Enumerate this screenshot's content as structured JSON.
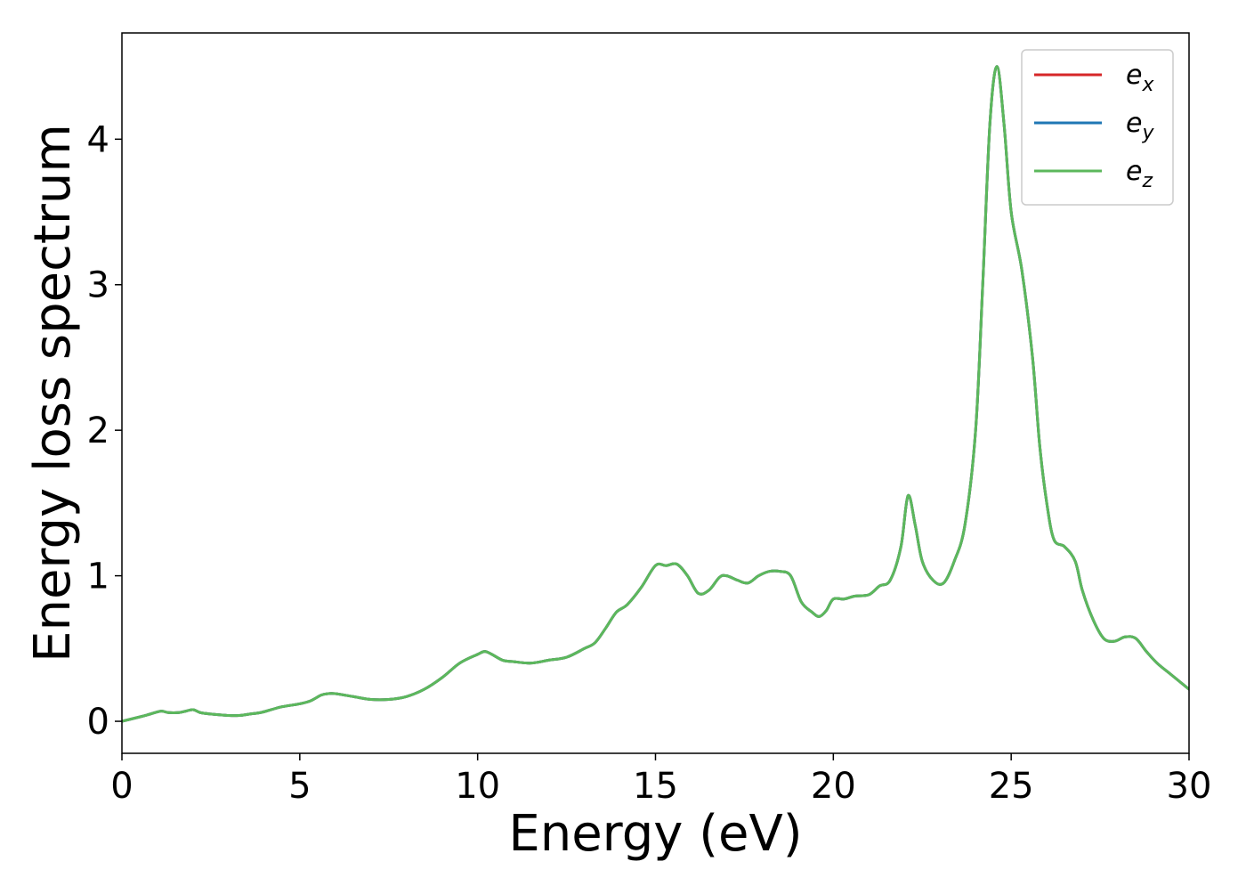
{
  "chart_data": {
    "type": "line",
    "title": "",
    "xlabel": "Energy (eV)",
    "ylabel": "Energy loss spectrum",
    "xlim": [
      0,
      30
    ],
    "ylim": [
      -0.22,
      4.73
    ],
    "xticks": [
      "0",
      "5",
      "10",
      "15",
      "20",
      "25",
      "30"
    ],
    "yticks": [
      "0",
      "1",
      "2",
      "3",
      "4"
    ],
    "xtick_values": [
      0,
      5,
      10,
      15,
      20,
      25,
      30
    ],
    "ytick_values": [
      0,
      1,
      2,
      3,
      4
    ],
    "grid": false,
    "legend": {
      "position": "top-right"
    },
    "series": [
      {
        "name": "e_x",
        "label_main": "e",
        "label_sub": "x",
        "color": "#d62728",
        "x": [
          0,
          0.5,
          0.8,
          1.1,
          1.3,
          1.6,
          1.8,
          2.0,
          2.2,
          2.5,
          3.0,
          3.3,
          3.6,
          3.9,
          4.2,
          4.5,
          5.0,
          5.3,
          5.6,
          5.8,
          6.0,
          6.5,
          7.0,
          7.5,
          8.0,
          8.5,
          9.0,
          9.5,
          10.0,
          10.2,
          10.4,
          10.7,
          11.0,
          11.5,
          12.0,
          12.5,
          13.0,
          13.3,
          13.6,
          13.9,
          14.2,
          14.6,
          15.0,
          15.3,
          15.6,
          15.9,
          16.2,
          16.5,
          16.8,
          17.0,
          17.3,
          17.6,
          17.9,
          18.2,
          18.5,
          18.8,
          19.1,
          19.4,
          19.6,
          19.8,
          20.0,
          20.3,
          20.6,
          21.0,
          21.3,
          21.6,
          21.9,
          22.1,
          22.3,
          22.5,
          22.8,
          23.1,
          23.4,
          23.7,
          24.0,
          24.2,
          24.4,
          24.6,
          24.8,
          25.0,
          25.3,
          25.6,
          25.8,
          26.0,
          26.2,
          26.5,
          26.8,
          27.0,
          27.3,
          27.6,
          27.9,
          28.2,
          28.5,
          28.8,
          29.1,
          29.5,
          30.0
        ],
        "y": [
          0.0,
          0.03,
          0.05,
          0.07,
          0.06,
          0.06,
          0.07,
          0.08,
          0.06,
          0.05,
          0.04,
          0.04,
          0.05,
          0.06,
          0.08,
          0.1,
          0.12,
          0.14,
          0.18,
          0.19,
          0.19,
          0.17,
          0.15,
          0.15,
          0.17,
          0.22,
          0.3,
          0.4,
          0.46,
          0.48,
          0.46,
          0.42,
          0.41,
          0.4,
          0.42,
          0.44,
          0.5,
          0.54,
          0.64,
          0.75,
          0.8,
          0.92,
          1.07,
          1.07,
          1.08,
          1.0,
          0.88,
          0.9,
          0.99,
          1.0,
          0.97,
          0.95,
          1.0,
          1.03,
          1.03,
          1.0,
          0.82,
          0.75,
          0.72,
          0.76,
          0.84,
          0.84,
          0.86,
          0.87,
          0.93,
          0.97,
          1.2,
          1.55,
          1.35,
          1.1,
          0.97,
          0.95,
          1.1,
          1.35,
          2.0,
          3.0,
          4.1,
          4.5,
          4.1,
          3.5,
          3.1,
          2.5,
          1.9,
          1.5,
          1.25,
          1.2,
          1.1,
          0.9,
          0.7,
          0.57,
          0.55,
          0.58,
          0.57,
          0.48,
          0.4,
          0.32,
          0.22
        ]
      },
      {
        "name": "e_y",
        "label_main": "e",
        "label_sub": "y",
        "color": "#1f77b4",
        "x": [
          0,
          0.5,
          0.8,
          1.1,
          1.3,
          1.6,
          1.8,
          2.0,
          2.2,
          2.5,
          3.0,
          3.3,
          3.6,
          3.9,
          4.2,
          4.5,
          5.0,
          5.3,
          5.6,
          5.8,
          6.0,
          6.5,
          7.0,
          7.5,
          8.0,
          8.5,
          9.0,
          9.5,
          10.0,
          10.2,
          10.4,
          10.7,
          11.0,
          11.5,
          12.0,
          12.5,
          13.0,
          13.3,
          13.6,
          13.9,
          14.2,
          14.6,
          15.0,
          15.3,
          15.6,
          15.9,
          16.2,
          16.5,
          16.8,
          17.0,
          17.3,
          17.6,
          17.9,
          18.2,
          18.5,
          18.8,
          19.1,
          19.4,
          19.6,
          19.8,
          20.0,
          20.3,
          20.6,
          21.0,
          21.3,
          21.6,
          21.9,
          22.1,
          22.3,
          22.5,
          22.8,
          23.1,
          23.4,
          23.7,
          24.0,
          24.2,
          24.4,
          24.6,
          24.8,
          25.0,
          25.3,
          25.6,
          25.8,
          26.0,
          26.2,
          26.5,
          26.8,
          27.0,
          27.3,
          27.6,
          27.9,
          28.2,
          28.5,
          28.8,
          29.1,
          29.5,
          30.0
        ],
        "y": [
          0.0,
          0.03,
          0.05,
          0.07,
          0.06,
          0.06,
          0.07,
          0.08,
          0.06,
          0.05,
          0.04,
          0.04,
          0.05,
          0.06,
          0.08,
          0.1,
          0.12,
          0.14,
          0.18,
          0.19,
          0.19,
          0.17,
          0.15,
          0.15,
          0.17,
          0.22,
          0.3,
          0.4,
          0.46,
          0.48,
          0.46,
          0.42,
          0.41,
          0.4,
          0.42,
          0.44,
          0.5,
          0.54,
          0.64,
          0.75,
          0.8,
          0.92,
          1.07,
          1.07,
          1.08,
          1.0,
          0.88,
          0.9,
          0.99,
          1.0,
          0.97,
          0.95,
          1.0,
          1.03,
          1.03,
          1.0,
          0.82,
          0.75,
          0.72,
          0.76,
          0.84,
          0.84,
          0.86,
          0.87,
          0.93,
          0.97,
          1.2,
          1.55,
          1.35,
          1.1,
          0.97,
          0.95,
          1.1,
          1.35,
          2.0,
          3.0,
          4.1,
          4.5,
          4.1,
          3.5,
          3.1,
          2.5,
          1.9,
          1.5,
          1.25,
          1.2,
          1.1,
          0.9,
          0.7,
          0.57,
          0.55,
          0.58,
          0.57,
          0.48,
          0.4,
          0.32,
          0.22
        ]
      },
      {
        "name": "e_z",
        "label_main": "e",
        "label_sub": "z",
        "color": "#5cb85c",
        "x": [
          0,
          0.5,
          0.8,
          1.1,
          1.3,
          1.6,
          1.8,
          2.0,
          2.2,
          2.5,
          3.0,
          3.3,
          3.6,
          3.9,
          4.2,
          4.5,
          5.0,
          5.3,
          5.6,
          5.8,
          6.0,
          6.5,
          7.0,
          7.5,
          8.0,
          8.5,
          9.0,
          9.5,
          10.0,
          10.2,
          10.4,
          10.7,
          11.0,
          11.5,
          12.0,
          12.5,
          13.0,
          13.3,
          13.6,
          13.9,
          14.2,
          14.6,
          15.0,
          15.3,
          15.6,
          15.9,
          16.2,
          16.5,
          16.8,
          17.0,
          17.3,
          17.6,
          17.9,
          18.2,
          18.5,
          18.8,
          19.1,
          19.4,
          19.6,
          19.8,
          20.0,
          20.3,
          20.6,
          21.0,
          21.3,
          21.6,
          21.9,
          22.1,
          22.3,
          22.5,
          22.8,
          23.1,
          23.4,
          23.7,
          24.0,
          24.2,
          24.4,
          24.6,
          24.8,
          25.0,
          25.3,
          25.6,
          25.8,
          26.0,
          26.2,
          26.5,
          26.8,
          27.0,
          27.3,
          27.6,
          27.9,
          28.2,
          28.5,
          28.8,
          29.1,
          29.5,
          30.0
        ],
        "y": [
          0.0,
          0.03,
          0.05,
          0.07,
          0.06,
          0.06,
          0.07,
          0.08,
          0.06,
          0.05,
          0.04,
          0.04,
          0.05,
          0.06,
          0.08,
          0.1,
          0.12,
          0.14,
          0.18,
          0.19,
          0.19,
          0.17,
          0.15,
          0.15,
          0.17,
          0.22,
          0.3,
          0.4,
          0.46,
          0.48,
          0.46,
          0.42,
          0.41,
          0.4,
          0.42,
          0.44,
          0.5,
          0.54,
          0.64,
          0.75,
          0.8,
          0.92,
          1.07,
          1.07,
          1.08,
          1.0,
          0.88,
          0.9,
          0.99,
          1.0,
          0.97,
          0.95,
          1.0,
          1.03,
          1.03,
          1.0,
          0.82,
          0.75,
          0.72,
          0.76,
          0.84,
          0.84,
          0.86,
          0.87,
          0.93,
          0.97,
          1.2,
          1.55,
          1.35,
          1.1,
          0.97,
          0.95,
          1.1,
          1.35,
          2.0,
          3.0,
          4.1,
          4.5,
          4.1,
          3.5,
          3.1,
          2.5,
          1.9,
          1.5,
          1.25,
          1.2,
          1.1,
          0.9,
          0.7,
          0.57,
          0.55,
          0.58,
          0.57,
          0.48,
          0.4,
          0.32,
          0.22
        ]
      }
    ]
  }
}
